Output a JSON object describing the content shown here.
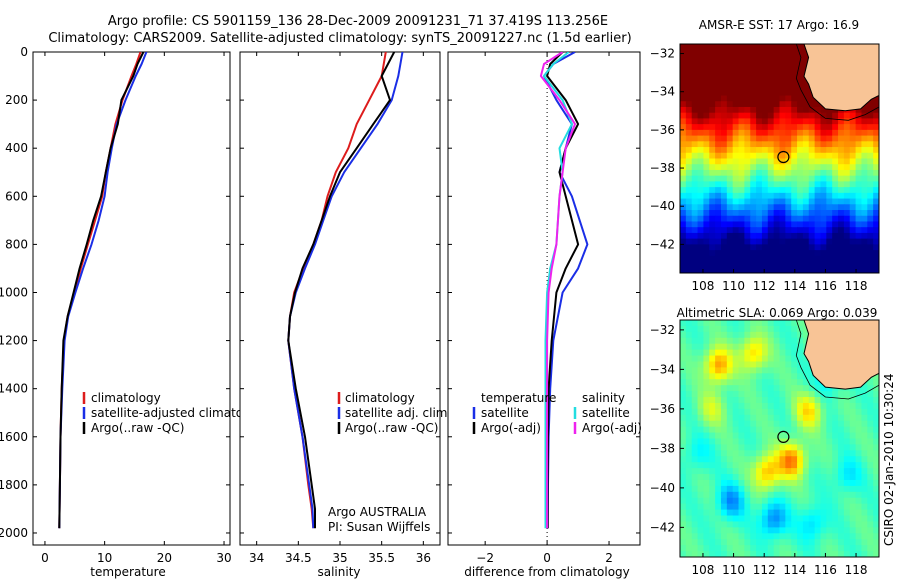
{
  "header": {
    "title_line1": "Argo profile: CS 5901159_136 28-Dec-2009 20091231_71 37.419S 113.256E",
    "title_line2": "Climatology: CARS2009. Satellite-adjusted climatology: synTS_20091227.nc (1.5d earlier)"
  },
  "side_label": "CSIRO 02-Jan-2010 10:30:24",
  "colors": {
    "black": "#000000",
    "red": "#dd1c1c",
    "blue": "#1a2ee6",
    "cyan": "#22dde0",
    "magenta": "#ee22ee",
    "land": "#f8c496"
  },
  "chart_data": [
    {
      "type": "line",
      "id": "temperature",
      "xlabel": "temperature",
      "ylabel": "",
      "xlim": [
        -2,
        31
      ],
      "ylim": [
        2050,
        0
      ],
      "xticks": [
        0,
        10,
        20,
        30
      ],
      "yticks": [
        0,
        200,
        400,
        600,
        800,
        1000,
        1200,
        1400,
        1600,
        1800,
        2000
      ],
      "legend": [
        "climatology",
        "satellite-adjusted climatology",
        "Argo(..raw -QC)"
      ],
      "series": [
        {
          "name": "climatology",
          "color": "red",
          "x": [
            16.0,
            15.3,
            14.5,
            13.0,
            11.8,
            11.0,
            10.2,
            9.6,
            8.4,
            7.2,
            6.0,
            4.9,
            3.8,
            3.2,
            2.8,
            2.6,
            2.5,
            2.4
          ],
          "y": [
            0,
            50,
            100,
            200,
            300,
            400,
            500,
            600,
            700,
            800,
            900,
            1000,
            1100,
            1200,
            1400,
            1600,
            1800,
            1980
          ]
        },
        {
          "name": "satellite-adjusted climatology",
          "color": "blue",
          "x": [
            17.0,
            16.2,
            15.2,
            13.5,
            12.0,
            11.2,
            10.5,
            10.0,
            9.0,
            7.8,
            6.4,
            5.1,
            3.9,
            3.3,
            2.9,
            2.6,
            2.5,
            2.4
          ],
          "y": [
            0,
            50,
            100,
            200,
            300,
            400,
            500,
            600,
            700,
            800,
            900,
            1000,
            1100,
            1200,
            1400,
            1600,
            1800,
            1980
          ]
        },
        {
          "name": "Argo(..raw -QC)",
          "color": "black",
          "x": [
            16.5,
            15.5,
            14.8,
            12.8,
            12.2,
            11.0,
            10.2,
            9.4,
            8.1,
            7.0,
            5.8,
            4.8,
            3.8,
            3.1,
            2.8,
            2.6,
            2.5,
            2.4
          ],
          "y": [
            0,
            50,
            100,
            200,
            300,
            400,
            500,
            600,
            700,
            800,
            900,
            1000,
            1100,
            1200,
            1400,
            1600,
            1800,
            1980
          ]
        }
      ]
    },
    {
      "type": "line",
      "id": "salinity",
      "xlabel": "salinity",
      "ylabel": "",
      "xlim": [
        33.8,
        36.2
      ],
      "ylim": [
        2050,
        0
      ],
      "xticks": [
        34,
        34.5,
        35,
        35.5,
        36
      ],
      "legend": [
        "climatology",
        "satellite adj. clim.",
        "Argo(..raw -QC)"
      ],
      "annotation": [
        "Argo AUSTRALIA",
        "PI: Susan Wijffels"
      ],
      "series": [
        {
          "name": "climatology",
          "color": "red",
          "x": [
            35.55,
            35.5,
            35.35,
            35.2,
            35.1,
            34.95,
            34.85,
            34.78,
            34.68,
            34.56,
            34.45,
            34.4,
            34.38,
            34.45,
            34.55,
            34.62,
            34.66,
            34.68
          ],
          "y": [
            0,
            100,
            200,
            300,
            400,
            500,
            600,
            700,
            800,
            900,
            1000,
            1100,
            1200,
            1400,
            1600,
            1800,
            1900,
            1980
          ]
        },
        {
          "name": "satellite adj. clim.",
          "color": "blue",
          "x": [
            35.75,
            35.7,
            35.62,
            35.45,
            35.25,
            35.05,
            34.9,
            34.8,
            34.7,
            34.58,
            34.47,
            34.4,
            34.38,
            34.45,
            34.55,
            34.63,
            34.67,
            34.68
          ],
          "y": [
            0,
            100,
            200,
            300,
            400,
            500,
            600,
            700,
            800,
            900,
            1000,
            1100,
            1200,
            1400,
            1600,
            1800,
            1900,
            1980
          ]
        },
        {
          "name": "Argo(..raw -QC)",
          "color": "black",
          "x": [
            35.65,
            35.5,
            35.6,
            35.4,
            35.2,
            35.0,
            34.88,
            34.78,
            34.68,
            34.55,
            34.46,
            34.4,
            34.38,
            34.47,
            34.58,
            34.66,
            34.7,
            34.7
          ],
          "y": [
            0,
            100,
            200,
            300,
            400,
            500,
            600,
            700,
            800,
            900,
            1000,
            1100,
            1200,
            1400,
            1600,
            1800,
            1900,
            1980
          ]
        }
      ]
    },
    {
      "type": "line",
      "id": "difference",
      "xlabel": "difference from climatology",
      "ylabel": "",
      "xlim": [
        -3.2,
        3.0
      ],
      "ylim": [
        2050,
        0
      ],
      "xticks": [
        -2,
        0,
        2
      ],
      "legend_left_title": "temperature",
      "legend_right_title": "salinity",
      "legend": [
        "satellite",
        "Argo(-adj)",
        "satellite",
        "Argo(-adj)"
      ],
      "series": [
        {
          "name": "temperature satellite",
          "color": "blue",
          "x": [
            0.9,
            0.2,
            -0.1,
            0.3,
            0.8,
            0.6,
            0.4,
            0.8,
            1.3,
            1.0,
            0.5,
            0.2,
            0.1,
            0.05,
            0.03,
            0.02
          ],
          "y": [
            0,
            50,
            100,
            200,
            300,
            400,
            500,
            600,
            800,
            900,
            1000,
            1200,
            1400,
            1600,
            1800,
            1980
          ]
        },
        {
          "name": "temperature Argo(-adj)",
          "color": "black",
          "x": [
            0.5,
            0.1,
            0.0,
            0.6,
            1.0,
            0.6,
            0.4,
            0.6,
            1.0,
            0.6,
            0.3,
            0.15,
            0.05,
            0.03,
            0.02,
            0.02
          ],
          "y": [
            0,
            50,
            100,
            200,
            300,
            400,
            500,
            600,
            800,
            900,
            1000,
            1200,
            1400,
            1600,
            1800,
            1980
          ]
        },
        {
          "name": "salinity satellite",
          "color": "cyan",
          "x": [
            0.7,
            0.2,
            -0.1,
            0.5,
            0.8,
            0.4,
            0.5,
            0.4,
            0.3,
            0.1,
            0.0,
            -0.05,
            -0.05,
            -0.05,
            -0.05,
            -0.05
          ],
          "y": [
            0,
            50,
            100,
            200,
            300,
            400,
            500,
            600,
            800,
            900,
            1000,
            1200,
            1400,
            1600,
            1800,
            1980
          ]
        },
        {
          "name": "salinity Argo(-adj)",
          "color": "magenta",
          "x": [
            0.5,
            -0.1,
            -0.2,
            0.4,
            0.9,
            0.6,
            0.5,
            0.4,
            0.3,
            0.15,
            0.05,
            0.0,
            0.0,
            0.0,
            0.0,
            0.0
          ],
          "y": [
            0,
            50,
            100,
            200,
            300,
            400,
            500,
            600,
            800,
            900,
            1000,
            1200,
            1400,
            1600,
            1800,
            1980
          ]
        }
      ]
    },
    {
      "type": "heatmap",
      "id": "sst_map",
      "title": "AMSR-E SST: 17 Argo: 16.9",
      "xlim": [
        106.5,
        119.5
      ],
      "ylim": [
        -43.5,
        -31.5
      ],
      "xticks": [
        108,
        110,
        112,
        114,
        116,
        118
      ],
      "yticks": [
        -32,
        -34,
        -36,
        -38,
        -40,
        -42
      ],
      "marker": {
        "lon": 113.256,
        "lat": -37.419
      }
    },
    {
      "type": "heatmap",
      "id": "sla_map",
      "title": "Altimetric SLA: 0.069 Argo: 0.039",
      "xlim": [
        106.5,
        119.5
      ],
      "ylim": [
        -43.5,
        -31.5
      ],
      "xticks": [
        108,
        110,
        112,
        114,
        116,
        118
      ],
      "yticks": [
        -32,
        -34,
        -36,
        -38,
        -40,
        -42
      ],
      "marker": {
        "lon": 113.256,
        "lat": -37.419
      }
    }
  ]
}
